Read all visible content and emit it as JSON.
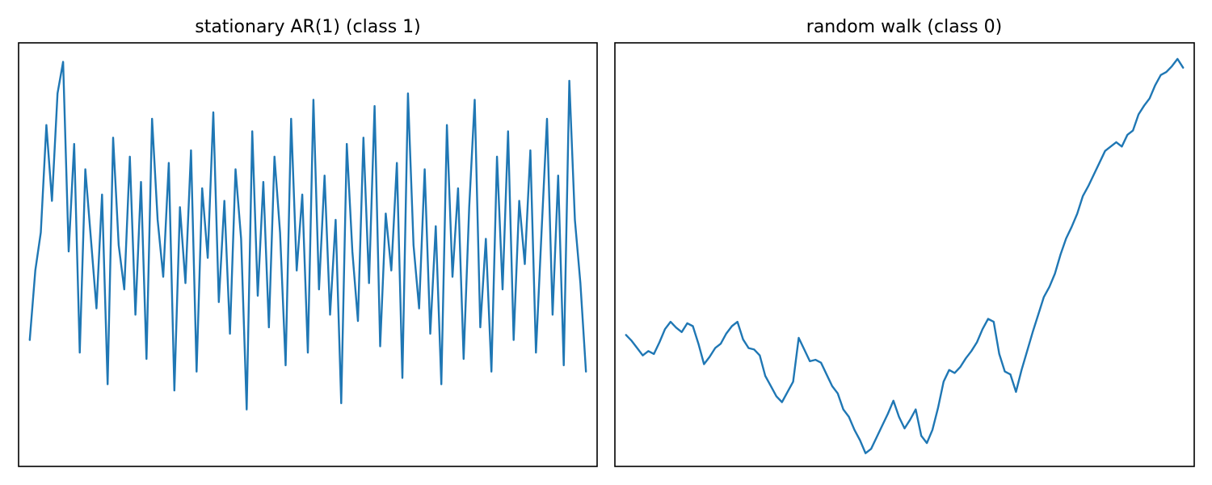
{
  "chart_data": [
    {
      "type": "line",
      "title": "stationary AR(1) (class 1)",
      "xlabel": "",
      "ylabel": "",
      "ticks_visible": false,
      "grid": false,
      "xlim": [
        -2,
        102
      ],
      "ylim": [
        -3.3,
        3.4
      ],
      "color": "#1f77b4",
      "x": [
        0,
        1,
        2,
        3,
        4,
        5,
        6,
        7,
        8,
        9,
        10,
        11,
        12,
        13,
        14,
        15,
        16,
        17,
        18,
        19,
        20,
        21,
        22,
        23,
        24,
        25,
        26,
        27,
        28,
        29,
        30,
        31,
        32,
        33,
        34,
        35,
        36,
        37,
        38,
        39,
        40,
        41,
        42,
        43,
        44,
        45,
        46,
        47,
        48,
        49,
        50,
        51,
        52,
        53,
        54,
        55,
        56,
        57,
        58,
        59,
        60,
        61,
        62,
        63,
        64,
        65,
        66,
        67,
        68,
        69,
        70,
        71,
        72,
        73,
        74,
        75,
        76,
        77,
        78,
        79,
        80,
        81,
        82,
        83,
        84,
        85,
        86,
        87,
        88,
        89,
        90,
        91,
        92,
        93,
        94,
        95,
        96,
        97,
        98,
        99,
        100
      ],
      "y": [
        -1.3,
        -0.2,
        0.4,
        2.1,
        0.9,
        2.6,
        3.1,
        0.1,
        1.8,
        -1.5,
        1.4,
        0.3,
        -0.8,
        1.0,
        -2.0,
        1.9,
        0.2,
        -0.5,
        1.6,
        -0.9,
        1.2,
        -1.6,
        2.2,
        0.6,
        -0.3,
        1.5,
        -2.1,
        0.8,
        -0.4,
        1.7,
        -1.8,
        1.1,
        0.0,
        2.3,
        -0.7,
        0.9,
        -1.2,
        1.4,
        0.3,
        -2.4,
        2.0,
        -0.6,
        1.2,
        -1.1,
        1.6,
        0.4,
        -1.7,
        2.2,
        -0.2,
        1.0,
        -1.5,
        2.5,
        -0.5,
        1.3,
        -0.9,
        0.6,
        -2.3,
        1.8,
        0.1,
        -1.0,
        1.9,
        -0.4,
        2.4,
        -1.4,
        0.7,
        -0.2,
        1.5,
        -1.9,
        2.6,
        0.2,
        -0.8,
        1.4,
        -1.2,
        0.5,
        -2.0,
        2.1,
        -0.3,
        1.1,
        -1.6,
        0.8,
        2.5,
        -1.1,
        0.3,
        -1.8,
        1.6,
        -0.5,
        2.0,
        -1.3,
        0.9,
        -0.1,
        1.7,
        -1.5,
        0.4,
        2.2,
        -0.9,
        1.3,
        -1.7,
        2.8,
        0.6,
        -0.4,
        -1.8
      ]
    },
    {
      "type": "line",
      "title": "random walk (class 0)",
      "xlabel": "",
      "ylabel": "",
      "ticks_visible": false,
      "grid": false,
      "xlim": [
        -2,
        102
      ],
      "ylim": [
        -6.0,
        23.0
      ],
      "color": "#1f77b4",
      "x": [
        0,
        1,
        2,
        3,
        4,
        5,
        6,
        7,
        8,
        9,
        10,
        11,
        12,
        13,
        14,
        15,
        16,
        17,
        18,
        19,
        20,
        21,
        22,
        23,
        24,
        25,
        26,
        27,
        28,
        29,
        30,
        31,
        32,
        33,
        34,
        35,
        36,
        37,
        38,
        39,
        40,
        41,
        42,
        43,
        44,
        45,
        46,
        47,
        48,
        49,
        50,
        51,
        52,
        53,
        54,
        55,
        56,
        57,
        58,
        59,
        60,
        61,
        62,
        63,
        64,
        65,
        66,
        67,
        68,
        69,
        70,
        71,
        72,
        73,
        74,
        75,
        76,
        77,
        78,
        79,
        80,
        81,
        82,
        83,
        84,
        85,
        86,
        87,
        88,
        89,
        90,
        91,
        92,
        93,
        94,
        95,
        96,
        97,
        98,
        99,
        100
      ],
      "y": [
        3.0,
        2.6,
        2.1,
        1.6,
        1.9,
        1.7,
        2.5,
        3.4,
        3.9,
        3.5,
        3.2,
        3.8,
        3.6,
        2.4,
        1.0,
        1.5,
        2.1,
        2.4,
        3.1,
        3.6,
        3.9,
        2.7,
        2.1,
        2.0,
        1.6,
        0.2,
        -0.5,
        -1.2,
        -1.6,
        -0.9,
        -0.2,
        2.8,
        2.0,
        1.2,
        1.3,
        1.1,
        0.3,
        -0.5,
        -1.0,
        -2.1,
        -2.6,
        -3.5,
        -4.2,
        -5.1,
        -4.8,
        -4.0,
        -3.2,
        -2.4,
        -1.5,
        -2.6,
        -3.4,
        -2.8,
        -2.1,
        -3.9,
        -4.4,
        -3.5,
        -2.0,
        -0.2,
        0.6,
        0.4,
        0.8,
        1.4,
        1.9,
        2.5,
        3.4,
        4.1,
        3.9,
        1.7,
        0.5,
        0.3,
        -0.9,
        0.6,
        1.9,
        3.2,
        4.4,
        5.6,
        6.3,
        7.2,
        8.5,
        9.6,
        10.4,
        11.3,
        12.5,
        13.2,
        14.0,
        14.8,
        15.6,
        15.9,
        16.2,
        15.9,
        16.7,
        17.0,
        18.1,
        18.7,
        19.2,
        20.1,
        20.8,
        21.0,
        21.4,
        21.9,
        21.3
      ]
    }
  ]
}
